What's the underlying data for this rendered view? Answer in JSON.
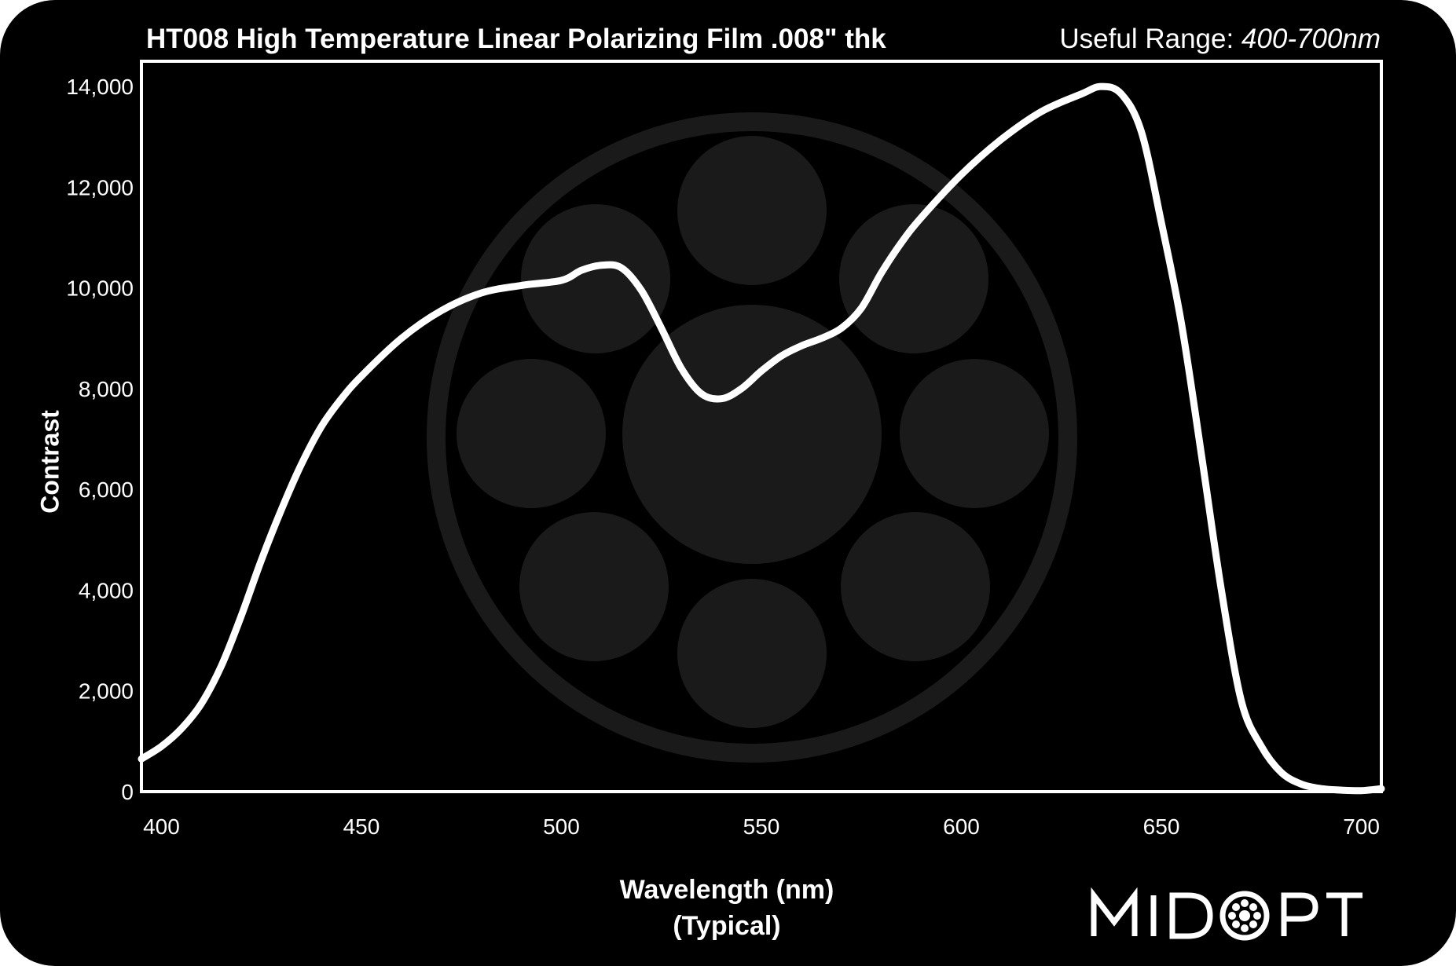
{
  "header": {
    "title": "HT008 High Temperature Linear Polarizing Film .008\" thk",
    "range_label": "Useful Range:",
    "range_value": "400-700nm"
  },
  "brand": {
    "logo_text": "MIDOPT"
  },
  "colors": {
    "background": "#000000",
    "curve": "#ffffff",
    "watermark": "#1a1a1a"
  },
  "chart_data": {
    "type": "line",
    "title": "HT008 High Temperature Linear Polarizing Film .008\" thk",
    "xlabel": "Wavelength (nm)",
    "xlabel_sub": "(Typical)",
    "ylabel": "Contrast",
    "xlim": [
      395,
      705
    ],
    "ylim": [
      0,
      14500
    ],
    "x_ticks": [
      400,
      450,
      500,
      550,
      600,
      650,
      700
    ],
    "y_ticks": [
      0,
      2000,
      4000,
      6000,
      8000,
      10000,
      12000,
      14000
    ],
    "y_tick_labels": [
      "0",
      "2,000",
      "4,000",
      "6,000",
      "8,000",
      "10,000",
      "12,000",
      "14,000"
    ],
    "grid": false,
    "legend": "none",
    "series": [
      {
        "x": [
          395,
          400,
          405,
          410,
          415,
          420,
          425,
          430,
          435,
          440,
          445,
          450,
          460,
          470,
          480,
          490,
          500,
          505,
          510,
          515,
          520,
          525,
          530,
          535,
          540,
          545,
          550,
          555,
          560,
          565,
          570,
          575,
          580,
          585,
          590,
          600,
          610,
          620,
          630,
          635,
          640,
          645,
          650,
          655,
          660,
          665,
          670,
          675,
          680,
          685,
          690,
          695,
          700,
          705
        ],
        "y": [
          650,
          900,
          1250,
          1750,
          2500,
          3500,
          4600,
          5600,
          6500,
          7250,
          7800,
          8250,
          9000,
          9550,
          9900,
          10050,
          10150,
          10350,
          10450,
          10400,
          9950,
          9200,
          8400,
          7900,
          7800,
          8000,
          8350,
          8650,
          8850,
          9000,
          9200,
          9600,
          10300,
          10900,
          11400,
          12250,
          12950,
          13500,
          13850,
          14000,
          13850,
          13100,
          11300,
          9300,
          6700,
          4000,
          1800,
          900,
          380,
          150,
          60,
          30,
          20,
          60
        ]
      }
    ]
  }
}
